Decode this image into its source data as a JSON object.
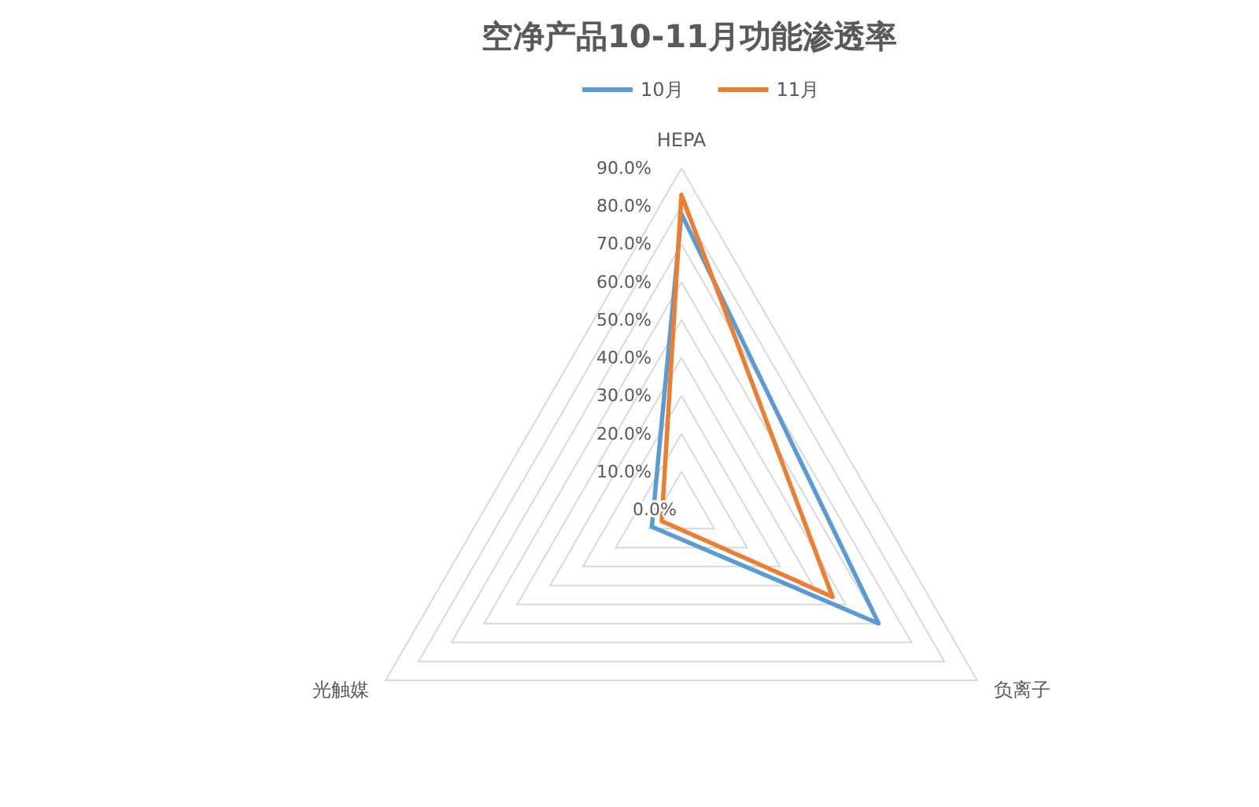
{
  "chart_data": {
    "type": "radar",
    "title": "空净产品10-11月功能渗透率",
    "categories": [
      "HEPA",
      "负离子",
      "光触媒"
    ],
    "series": [
      {
        "name": "10月",
        "color": "#5b9bd5",
        "values": [
          78,
          60,
          9
        ]
      },
      {
        "name": "11月",
        "color": "#ed7d31",
        "values": [
          83,
          46,
          6
        ]
      }
    ],
    "ylim": [
      0,
      90
    ],
    "yticks": [
      {
        "value": 0,
        "label": "0.0%"
      },
      {
        "value": 10,
        "label": "10.0%"
      },
      {
        "value": 20,
        "label": "20.0%"
      },
      {
        "value": 30,
        "label": "30.0%"
      },
      {
        "value": 40,
        "label": "40.0%"
      },
      {
        "value": 50,
        "label": "50.0%"
      },
      {
        "value": 60,
        "label": "60.0%"
      },
      {
        "value": 70,
        "label": "70.0%"
      },
      {
        "value": 80,
        "label": "80.0%"
      },
      {
        "value": 90,
        "label": "90.0%"
      }
    ],
    "grid": true,
    "legend": "top",
    "marker": "none"
  }
}
